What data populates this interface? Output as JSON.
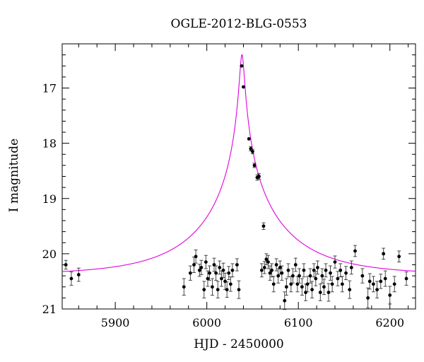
{
  "chart_data": {
    "type": "scatter",
    "title": "OGLE-2012-BLG-0553",
    "xlabel": "HJD - 2450000",
    "ylabel": "I magnitude",
    "xlim": [
      5842,
      6228
    ],
    "ylim": [
      21.0,
      16.2
    ],
    "y_inverted": true,
    "x_ticks": [
      5900,
      6000,
      6100,
      6200
    ],
    "y_ticks": [
      17,
      18,
      19,
      20,
      21
    ],
    "x_minor_step": 20,
    "y_minor_step": 0.2,
    "grid": false,
    "series": [
      {
        "kind": "model",
        "color": "#e000e0",
        "t0": 6038.4,
        "baseline_mag": 20.38,
        "u0": 0.0255,
        "tE": 95
      },
      {
        "kind": "data",
        "color": "#000000",
        "points": [
          {
            "x": 5846,
            "y": 20.2,
            "err": 0.08
          },
          {
            "x": 5852,
            "y": 20.45,
            "err": 0.12
          },
          {
            "x": 5860,
            "y": 20.38,
            "err": 0.12
          },
          {
            "x": 5975,
            "y": 20.6,
            "err": 0.15
          },
          {
            "x": 5982,
            "y": 20.35,
            "err": 0.13
          },
          {
            "x": 5986,
            "y": 20.2,
            "err": 0.14
          },
          {
            "x": 5988,
            "y": 20.05,
            "err": 0.12
          },
          {
            "x": 5992,
            "y": 20.3,
            "err": 0.11
          },
          {
            "x": 5994,
            "y": 20.25,
            "err": 0.13
          },
          {
            "x": 5997,
            "y": 20.65,
            "err": 0.15
          },
          {
            "x": 5999,
            "y": 20.15,
            "err": 0.12
          },
          {
            "x": 6001,
            "y": 20.45,
            "err": 0.14
          },
          {
            "x": 6003,
            "y": 20.35,
            "err": 0.13
          },
          {
            "x": 6006,
            "y": 20.6,
            "err": 0.15
          },
          {
            "x": 6008,
            "y": 20.2,
            "err": 0.12
          },
          {
            "x": 6010,
            "y": 20.35,
            "err": 0.13
          },
          {
            "x": 6012,
            "y": 20.65,
            "err": 0.15
          },
          {
            "x": 6014,
            "y": 20.25,
            "err": 0.12
          },
          {
            "x": 6016,
            "y": 20.45,
            "err": 0.14
          },
          {
            "x": 6018,
            "y": 20.3,
            "err": 0.13
          },
          {
            "x": 6020,
            "y": 20.5,
            "err": 0.15
          },
          {
            "x": 6022,
            "y": 20.65,
            "err": 0.14
          },
          {
            "x": 6024,
            "y": 20.35,
            "err": 0.12
          },
          {
            "x": 6026,
            "y": 20.55,
            "err": 0.13
          },
          {
            "x": 6028,
            "y": 20.3,
            "err": 0.12
          },
          {
            "x": 6033,
            "y": 20.2,
            "err": 0.11
          },
          {
            "x": 6035,
            "y": 20.65,
            "err": 0.16
          },
          {
            "x": 6038,
            "y": 16.6,
            "err": 0.02
          },
          {
            "x": 6040,
            "y": 16.98,
            "err": 0.02
          },
          {
            "x": 6046,
            "y": 17.92,
            "err": 0.03
          },
          {
            "x": 6048,
            "y": 18.1,
            "err": 0.04
          },
          {
            "x": 6050,
            "y": 18.15,
            "err": 0.04
          },
          {
            "x": 6052,
            "y": 18.4,
            "err": 0.04
          },
          {
            "x": 6055,
            "y": 18.62,
            "err": 0.05
          },
          {
            "x": 6057,
            "y": 18.6,
            "err": 0.05
          },
          {
            "x": 6062,
            "y": 19.5,
            "err": 0.06
          },
          {
            "x": 6060,
            "y": 20.3,
            "err": 0.12
          },
          {
            "x": 6063,
            "y": 20.25,
            "err": 0.11
          },
          {
            "x": 6065,
            "y": 20.1,
            "err": 0.1
          },
          {
            "x": 6067,
            "y": 20.15,
            "err": 0.12
          },
          {
            "x": 6069,
            "y": 20.35,
            "err": 0.13
          },
          {
            "x": 6071,
            "y": 20.3,
            "err": 0.12
          },
          {
            "x": 6073,
            "y": 20.55,
            "err": 0.14
          },
          {
            "x": 6076,
            "y": 20.2,
            "err": 0.11
          },
          {
            "x": 6078,
            "y": 20.4,
            "err": 0.13
          },
          {
            "x": 6080,
            "y": 20.25,
            "err": 0.12
          },
          {
            "x": 6082,
            "y": 20.35,
            "err": 0.13
          },
          {
            "x": 6085,
            "y": 20.85,
            "err": 0.16
          },
          {
            "x": 6087,
            "y": 20.6,
            "err": 0.15
          },
          {
            "x": 6089,
            "y": 20.3,
            "err": 0.12
          },
          {
            "x": 6092,
            "y": 20.55,
            "err": 0.14
          },
          {
            "x": 6094,
            "y": 20.4,
            "err": 0.13
          },
          {
            "x": 6097,
            "y": 20.2,
            "err": 0.12
          },
          {
            "x": 6099,
            "y": 20.55,
            "err": 0.14
          },
          {
            "x": 6101,
            "y": 20.4,
            "err": 0.13
          },
          {
            "x": 6104,
            "y": 20.6,
            "err": 0.15
          },
          {
            "x": 6106,
            "y": 20.3,
            "err": 0.12
          },
          {
            "x": 6108,
            "y": 20.7,
            "err": 0.15
          },
          {
            "x": 6110,
            "y": 20.55,
            "err": 0.14
          },
          {
            "x": 6113,
            "y": 20.4,
            "err": 0.13
          },
          {
            "x": 6115,
            "y": 20.65,
            "err": 0.15
          },
          {
            "x": 6117,
            "y": 20.3,
            "err": 0.12
          },
          {
            "x": 6119,
            "y": 20.45,
            "err": 0.13
          },
          {
            "x": 6121,
            "y": 20.25,
            "err": 0.12
          },
          {
            "x": 6124,
            "y": 20.7,
            "err": 0.15
          },
          {
            "x": 6126,
            "y": 20.4,
            "err": 0.13
          },
          {
            "x": 6128,
            "y": 20.6,
            "err": 0.14
          },
          {
            "x": 6130,
            "y": 20.3,
            "err": 0.12
          },
          {
            "x": 6133,
            "y": 20.7,
            "err": 0.16
          },
          {
            "x": 6135,
            "y": 20.35,
            "err": 0.13
          },
          {
            "x": 6137,
            "y": 20.55,
            "err": 0.14
          },
          {
            "x": 6140,
            "y": 20.15,
            "err": 0.11
          },
          {
            "x": 6143,
            "y": 20.45,
            "err": 0.13
          },
          {
            "x": 6146,
            "y": 20.3,
            "err": 0.12
          },
          {
            "x": 6148,
            "y": 20.55,
            "err": 0.14
          },
          {
            "x": 6152,
            "y": 20.35,
            "err": 0.12
          },
          {
            "x": 6156,
            "y": 20.65,
            "err": 0.16
          },
          {
            "x": 6158,
            "y": 20.25,
            "err": 0.12
          },
          {
            "x": 6162,
            "y": 19.95,
            "err": 0.1
          },
          {
            "x": 6170,
            "y": 20.4,
            "err": 0.13
          },
          {
            "x": 6176,
            "y": 20.8,
            "err": 0.18
          },
          {
            "x": 6178,
            "y": 20.5,
            "err": 0.14
          },
          {
            "x": 6182,
            "y": 20.55,
            "err": 0.14
          },
          {
            "x": 6186,
            "y": 20.65,
            "err": 0.15
          },
          {
            "x": 6190,
            "y": 20.5,
            "err": 0.13
          },
          {
            "x": 6195,
            "y": 20.45,
            "err": 0.14
          },
          {
            "x": 6200,
            "y": 20.75,
            "err": 0.16
          },
          {
            "x": 6193,
            "y": 20.0,
            "err": 0.1
          },
          {
            "x": 6205,
            "y": 20.55,
            "err": 0.14
          },
          {
            "x": 6210,
            "y": 20.05,
            "err": 0.1
          },
          {
            "x": 6218,
            "y": 20.45,
            "err": 0.12
          }
        ]
      }
    ]
  }
}
